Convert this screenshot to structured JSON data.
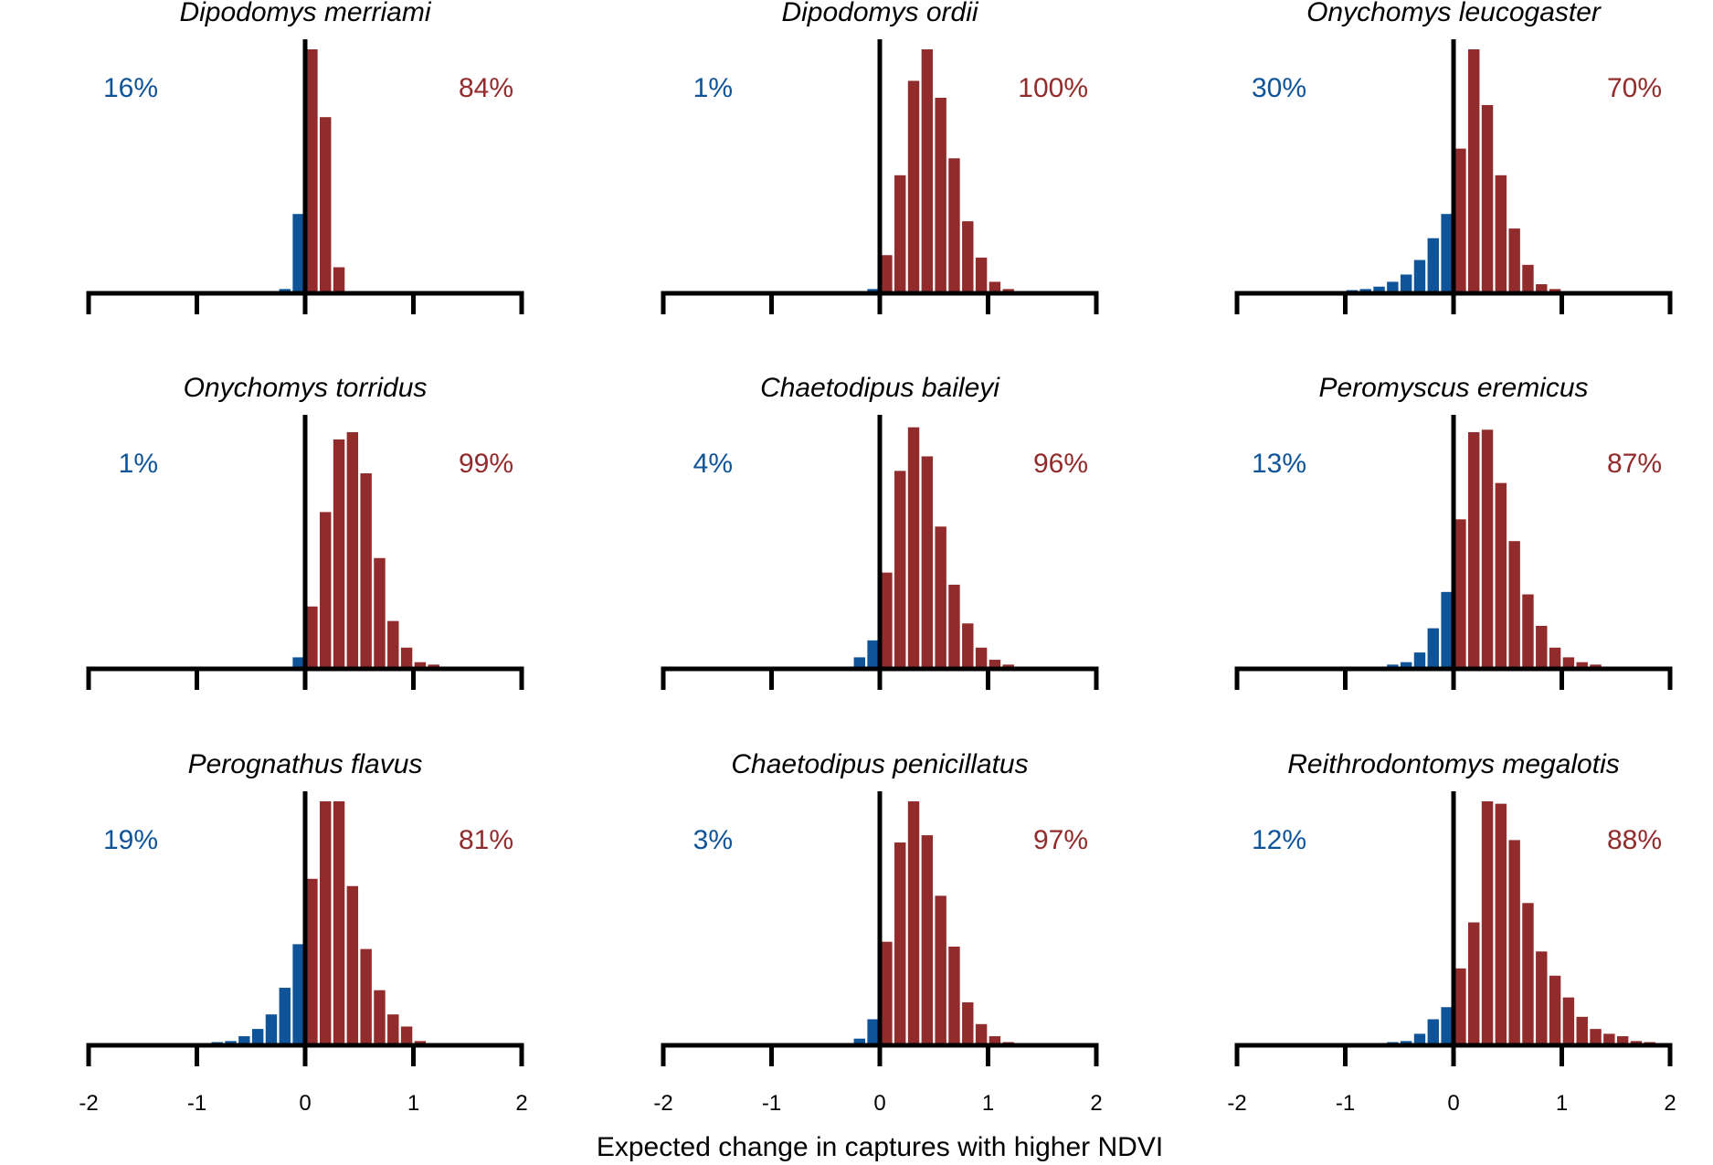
{
  "colors": {
    "negative": "#0f5499",
    "positive": "#922b2b",
    "axis": "#000000"
  },
  "chart_data": {
    "type": "bar",
    "xlabel": "Expected change in captures with higher NDVI",
    "xlim": [
      -2,
      2
    ],
    "xticks": [
      -2,
      -1,
      0,
      1,
      2
    ],
    "bin_width": 0.125,
    "panels": [
      {
        "title": "Dipodomys merriami",
        "neg_pct": "16%",
        "pos_pct": "84%",
        "neg": [
          {
            "x": -0.1875,
            "h": 0.01
          },
          {
            "x": -0.0625,
            "h": 0.32
          }
        ],
        "pos": [
          {
            "x": 0.0625,
            "h": 1.0
          },
          {
            "x": 0.1875,
            "h": 0.72
          },
          {
            "x": 0.3125,
            "h": 0.1
          }
        ]
      },
      {
        "title": "Dipodomys ordii",
        "neg_pct": "1%",
        "pos_pct": "100%",
        "neg": [
          {
            "x": -0.0625,
            "h": 0.01
          }
        ],
        "pos": [
          {
            "x": 0.0625,
            "h": 0.15
          },
          {
            "x": 0.1875,
            "h": 0.48
          },
          {
            "x": 0.3125,
            "h": 0.87
          },
          {
            "x": 0.4375,
            "h": 1.0
          },
          {
            "x": 0.5625,
            "h": 0.8
          },
          {
            "x": 0.6875,
            "h": 0.55
          },
          {
            "x": 0.8125,
            "h": 0.29
          },
          {
            "x": 0.9375,
            "h": 0.14
          },
          {
            "x": 1.0625,
            "h": 0.04
          },
          {
            "x": 1.1875,
            "h": 0.01
          }
        ]
      },
      {
        "title": "Onychomys leucogaster",
        "neg_pct": "30%",
        "pos_pct": "70%",
        "neg": [
          {
            "x": -0.9375,
            "h": 0.005
          },
          {
            "x": -0.8125,
            "h": 0.01
          },
          {
            "x": -0.6875,
            "h": 0.02
          },
          {
            "x": -0.5625,
            "h": 0.04
          },
          {
            "x": -0.4375,
            "h": 0.07
          },
          {
            "x": -0.3125,
            "h": 0.13
          },
          {
            "x": -0.1875,
            "h": 0.22
          },
          {
            "x": -0.0625,
            "h": 0.32
          },
          {
            "x": 0.0,
            "h": 0.0
          }
        ],
        "pos": [
          {
            "x": 0.0625,
            "h": 0.59
          },
          {
            "x": 0.1875,
            "h": 1.0
          },
          {
            "x": 0.3125,
            "h": 0.77
          },
          {
            "x": 0.4375,
            "h": 0.48
          },
          {
            "x": 0.5625,
            "h": 0.26
          },
          {
            "x": 0.6875,
            "h": 0.11
          },
          {
            "x": 0.8125,
            "h": 0.03
          },
          {
            "x": 0.9375,
            "h": 0.01
          }
        ]
      },
      {
        "title": "Onychomys torridus",
        "neg_pct": "1%",
        "pos_pct": "99%",
        "neg": [
          {
            "x": -0.0625,
            "h": 0.04
          }
        ],
        "pos": [
          {
            "x": 0.0625,
            "h": 0.25
          },
          {
            "x": 0.1875,
            "h": 0.64
          },
          {
            "x": 0.3125,
            "h": 0.94
          },
          {
            "x": 0.4375,
            "h": 0.97
          },
          {
            "x": 0.5625,
            "h": 0.8
          },
          {
            "x": 0.6875,
            "h": 0.45
          },
          {
            "x": 0.8125,
            "h": 0.19
          },
          {
            "x": 0.9375,
            "h": 0.08
          },
          {
            "x": 1.0625,
            "h": 0.02
          },
          {
            "x": 1.1875,
            "h": 0.01
          }
        ]
      },
      {
        "title": "Chaetodipus baileyi",
        "neg_pct": "4%",
        "pos_pct": "96%",
        "neg": [
          {
            "x": -0.1875,
            "h": 0.04
          },
          {
            "x": -0.0625,
            "h": 0.11
          }
        ],
        "pos": [
          {
            "x": 0.0625,
            "h": 0.39
          },
          {
            "x": 0.1875,
            "h": 0.81
          },
          {
            "x": 0.3125,
            "h": 0.99
          },
          {
            "x": 0.4375,
            "h": 0.87
          },
          {
            "x": 0.5625,
            "h": 0.58
          },
          {
            "x": 0.6875,
            "h": 0.34
          },
          {
            "x": 0.8125,
            "h": 0.18
          },
          {
            "x": 0.9375,
            "h": 0.08
          },
          {
            "x": 1.0625,
            "h": 0.03
          },
          {
            "x": 1.1875,
            "h": 0.01
          }
        ]
      },
      {
        "title": "Peromyscus eremicus",
        "neg_pct": "13%",
        "pos_pct": "87%",
        "neg": [
          {
            "x": -0.5625,
            "h": 0.01
          },
          {
            "x": -0.4375,
            "h": 0.02
          },
          {
            "x": -0.3125,
            "h": 0.06
          },
          {
            "x": -0.1875,
            "h": 0.16
          },
          {
            "x": -0.0625,
            "h": 0.31
          }
        ],
        "pos": [
          {
            "x": 0.0625,
            "h": 0.61
          },
          {
            "x": 0.1875,
            "h": 0.97
          },
          {
            "x": 0.3125,
            "h": 0.98
          },
          {
            "x": 0.4375,
            "h": 0.76
          },
          {
            "x": 0.5625,
            "h": 0.52
          },
          {
            "x": 0.6875,
            "h": 0.3
          },
          {
            "x": 0.8125,
            "h": 0.17
          },
          {
            "x": 0.9375,
            "h": 0.08
          },
          {
            "x": 1.0625,
            "h": 0.04
          },
          {
            "x": 1.1875,
            "h": 0.02
          },
          {
            "x": 1.3125,
            "h": 0.01
          }
        ]
      },
      {
        "title": "Perognathus flavus",
        "neg_pct": "19%",
        "pos_pct": "81%",
        "neg": [
          {
            "x": -0.8125,
            "h": 0.005
          },
          {
            "x": -0.6875,
            "h": 0.01
          },
          {
            "x": -0.5625,
            "h": 0.03
          },
          {
            "x": -0.4375,
            "h": 0.06
          },
          {
            "x": -0.3125,
            "h": 0.12
          },
          {
            "x": -0.1875,
            "h": 0.23
          },
          {
            "x": -0.0625,
            "h": 0.41
          }
        ],
        "pos": [
          {
            "x": 0.0625,
            "h": 0.68
          },
          {
            "x": 0.1875,
            "h": 1.0
          },
          {
            "x": 0.3125,
            "h": 1.0
          },
          {
            "x": 0.4375,
            "h": 0.65
          },
          {
            "x": 0.5625,
            "h": 0.39
          },
          {
            "x": 0.6875,
            "h": 0.22
          },
          {
            "x": 0.8125,
            "h": 0.12
          },
          {
            "x": 0.9375,
            "h": 0.07
          },
          {
            "x": 1.0625,
            "h": 0.01
          }
        ]
      },
      {
        "title": "Chaetodipus penicillatus",
        "neg_pct": "3%",
        "pos_pct": "97%",
        "neg": [
          {
            "x": -0.1875,
            "h": 0.02
          },
          {
            "x": -0.0625,
            "h": 0.1
          }
        ],
        "pos": [
          {
            "x": 0.0625,
            "h": 0.42
          },
          {
            "x": 0.1875,
            "h": 0.83
          },
          {
            "x": 0.3125,
            "h": 1.0
          },
          {
            "x": 0.4375,
            "h": 0.86
          },
          {
            "x": 0.5625,
            "h": 0.61
          },
          {
            "x": 0.6875,
            "h": 0.4
          },
          {
            "x": 0.8125,
            "h": 0.17
          },
          {
            "x": 0.9375,
            "h": 0.08
          },
          {
            "x": 1.0625,
            "h": 0.03
          },
          {
            "x": 1.1875,
            "h": 0.005
          }
        ]
      },
      {
        "title": "Reithrodontomys megalotis",
        "neg_pct": "12%",
        "pos_pct": "88%",
        "neg": [
          {
            "x": -0.5625,
            "h": 0.005
          },
          {
            "x": -0.4375,
            "h": 0.01
          },
          {
            "x": -0.3125,
            "h": 0.04
          },
          {
            "x": -0.1875,
            "h": 0.1
          },
          {
            "x": -0.0625,
            "h": 0.15
          },
          {
            "x": 0.0,
            "h": 0.0
          }
        ],
        "pos": [
          {
            "x": 0.0625,
            "h": 0.31
          },
          {
            "x": 0.1875,
            "h": 0.5
          },
          {
            "x": 0.3125,
            "h": 1.0
          },
          {
            "x": 0.4375,
            "h": 0.99
          },
          {
            "x": 0.5625,
            "h": 0.84
          },
          {
            "x": 0.6875,
            "h": 0.58
          },
          {
            "x": 0.8125,
            "h": 0.38
          },
          {
            "x": 0.9375,
            "h": 0.28
          },
          {
            "x": 1.0625,
            "h": 0.19
          },
          {
            "x": 1.1875,
            "h": 0.11
          },
          {
            "x": 1.3125,
            "h": 0.06
          },
          {
            "x": 1.4375,
            "h": 0.04
          },
          {
            "x": 1.5625,
            "h": 0.03
          },
          {
            "x": 1.6875,
            "h": 0.01
          },
          {
            "x": 1.8125,
            "h": 0.005
          }
        ]
      }
    ]
  }
}
